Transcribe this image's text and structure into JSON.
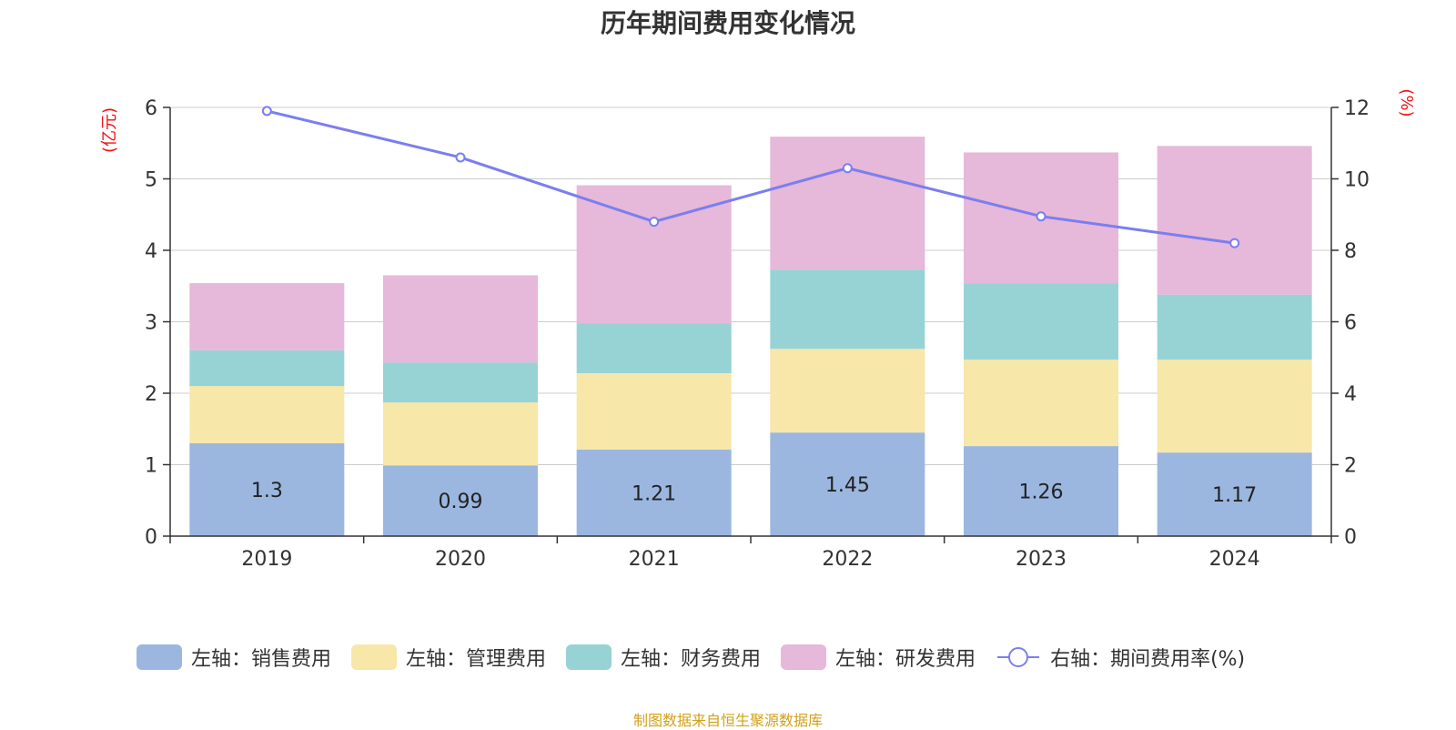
{
  "chart_data": {
    "type": "bar",
    "stacked": true,
    "title": "历年期间费用变化情况",
    "categories": [
      "2019",
      "2020",
      "2021",
      "2022",
      "2023",
      "2024"
    ],
    "series": [
      {
        "name": "左轴：销售费用",
        "axis": "left",
        "color": "#9bb7e0",
        "values": [
          1.3,
          0.99,
          1.21,
          1.45,
          1.26,
          1.17
        ],
        "show_labels": true
      },
      {
        "name": "左轴：管理费用",
        "axis": "left",
        "color": "#f7e7a8",
        "values": [
          0.8,
          0.88,
          1.07,
          1.17,
          1.21,
          1.3
        ]
      },
      {
        "name": "左轴：财务费用",
        "axis": "left",
        "color": "#97d3d4",
        "values": [
          0.5,
          0.56,
          0.7,
          1.11,
          1.07,
          0.91
        ]
      },
      {
        "name": "左轴：研发费用",
        "axis": "left",
        "color": "#e6b8d9",
        "values": [
          0.94,
          1.22,
          1.93,
          1.86,
          1.83,
          2.08
        ]
      },
      {
        "name": "右轴：期间费用率(%)",
        "axis": "right",
        "type": "line",
        "color": "#7b7ef0",
        "values": [
          11.9,
          10.6,
          8.8,
          10.3,
          8.95,
          8.2
        ]
      }
    ],
    "y_left": {
      "label": "(亿元)",
      "ylim": [
        0,
        6
      ],
      "ticks": [
        "0",
        "1",
        "2",
        "3",
        "4",
        "5",
        "6"
      ]
    },
    "y_right": {
      "label": "(%)",
      "ylim": [
        0,
        12
      ],
      "ticks": [
        "0",
        "2",
        "4",
        "6",
        "8",
        "10",
        "12"
      ]
    },
    "grid": true,
    "legend_position": "bottom"
  },
  "source_note": "制图数据来自恒生聚源数据库"
}
